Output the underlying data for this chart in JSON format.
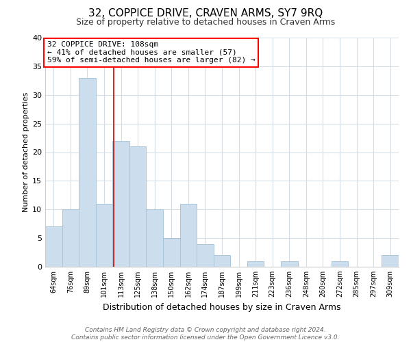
{
  "title": "32, COPPICE DRIVE, CRAVEN ARMS, SY7 9RQ",
  "subtitle": "Size of property relative to detached houses in Craven Arms",
  "xlabel": "Distribution of detached houses by size in Craven Arms",
  "ylabel": "Number of detached properties",
  "bin_labels": [
    "64sqm",
    "76sqm",
    "89sqm",
    "101sqm",
    "113sqm",
    "125sqm",
    "138sqm",
    "150sqm",
    "162sqm",
    "174sqm",
    "187sqm",
    "199sqm",
    "211sqm",
    "223sqm",
    "236sqm",
    "248sqm",
    "260sqm",
    "272sqm",
    "285sqm",
    "297sqm",
    "309sqm"
  ],
  "bar_values": [
    7,
    10,
    33,
    11,
    22,
    21,
    10,
    5,
    11,
    4,
    2,
    0,
    1,
    0,
    1,
    0,
    0,
    1,
    0,
    0,
    2
  ],
  "bar_color": "#ccdded",
  "bar_edge_color": "#a8c4d8",
  "annotation_text": "32 COPPICE DRIVE: 108sqm\n← 41% of detached houses are smaller (57)\n59% of semi-detached houses are larger (82) →",
  "annotation_box_color": "white",
  "annotation_box_edge_color": "red",
  "highlight_line_color": "#cc0000",
  "ylim": [
    0,
    40
  ],
  "yticks": [
    0,
    5,
    10,
    15,
    20,
    25,
    30,
    35,
    40
  ],
  "footer_line1": "Contains HM Land Registry data © Crown copyright and database right 2024.",
  "footer_line2": "Contains public sector information licensed under the Open Government Licence v3.0.",
  "grid_color": "#d4dde6",
  "title_fontsize": 11,
  "subtitle_fontsize": 9,
  "ylabel_fontsize": 8,
  "xlabel_fontsize": 9,
  "tick_fontsize": 8,
  "xtick_fontsize": 7,
  "annotation_fontsize": 8,
  "footer_fontsize": 6.5
}
